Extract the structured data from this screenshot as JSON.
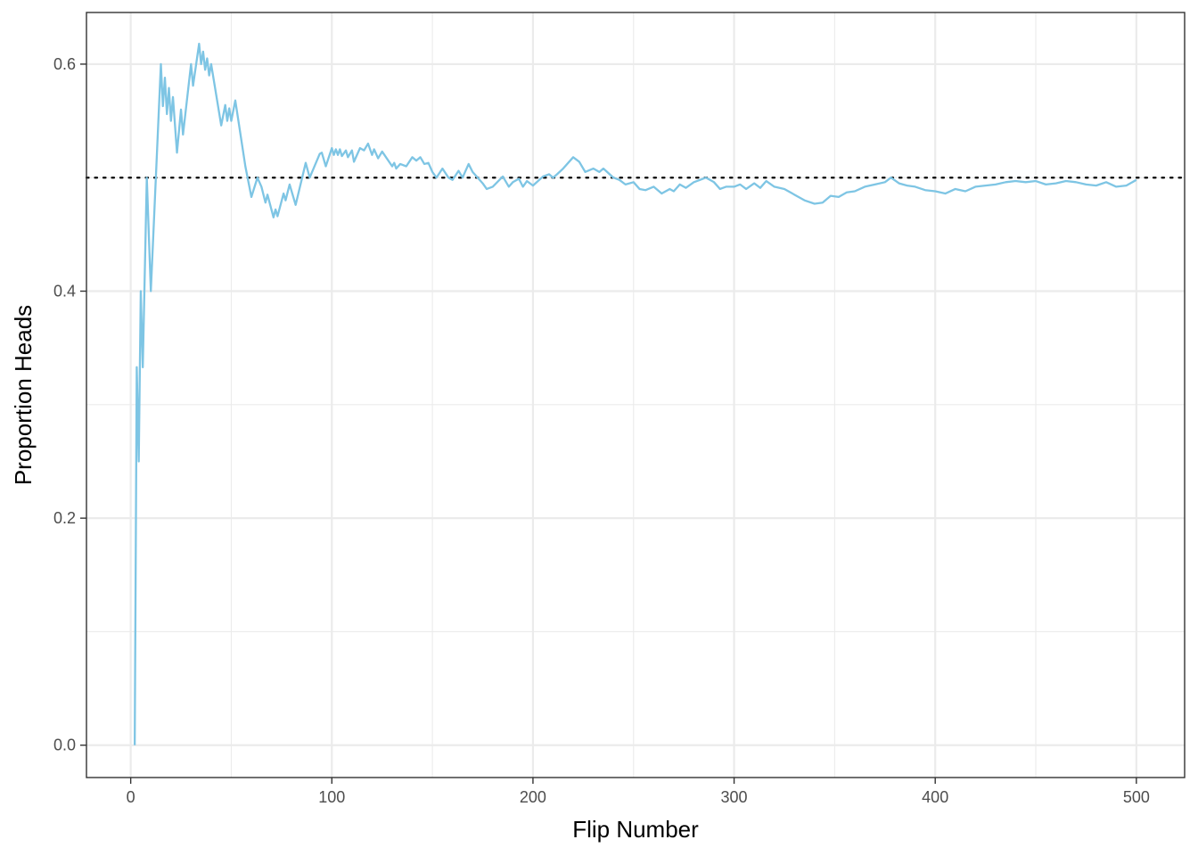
{
  "chart_data": {
    "type": "line",
    "xlabel": "Flip Number",
    "ylabel": "Proportion Heads",
    "xlim": [
      -22,
      524
    ],
    "ylim": [
      -0.0285,
      0.6455
    ],
    "x_ticks": [
      0,
      100,
      200,
      300,
      400,
      500
    ],
    "x_minor_ticks": [
      50,
      150,
      250,
      350,
      450
    ],
    "y_ticks": [
      0.0,
      0.2,
      0.4,
      0.6
    ],
    "y_tick_labels": [
      "0.0",
      "0.2",
      "0.4",
      "0.6"
    ],
    "y_minor_ticks": [
      0.1,
      0.3,
      0.5
    ],
    "grid": true,
    "reference_line": {
      "y": 0.5,
      "style": "dotted",
      "color": "#000000"
    },
    "series": [
      {
        "color": "#7ec5e4",
        "points": [
          [
            2,
            0.0
          ],
          [
            3,
            0.333
          ],
          [
            4,
            0.25
          ],
          [
            5,
            0.4
          ],
          [
            6,
            0.333
          ],
          [
            8,
            0.5
          ],
          [
            10,
            0.4
          ],
          [
            15,
            0.6
          ],
          [
            16,
            0.563
          ],
          [
            17,
            0.588
          ],
          [
            18,
            0.556
          ],
          [
            19,
            0.579
          ],
          [
            20,
            0.55
          ],
          [
            21,
            0.571
          ],
          [
            23,
            0.522
          ],
          [
            25,
            0.56
          ],
          [
            26,
            0.538
          ],
          [
            30,
            0.6
          ],
          [
            31,
            0.581
          ],
          [
            34,
            0.618
          ],
          [
            35,
            0.6
          ],
          [
            36,
            0.611
          ],
          [
            37,
            0.595
          ],
          [
            38,
            0.605
          ],
          [
            39,
            0.59
          ],
          [
            40,
            0.6
          ],
          [
            45,
            0.546
          ],
          [
            47,
            0.564
          ],
          [
            48,
            0.55
          ],
          [
            49,
            0.561
          ],
          [
            50,
            0.55
          ],
          [
            52,
            0.568
          ],
          [
            57,
            0.51
          ],
          [
            60,
            0.483
          ],
          [
            63,
            0.5
          ],
          [
            65,
            0.492
          ],
          [
            67,
            0.478
          ],
          [
            68,
            0.485
          ],
          [
            71,
            0.465
          ],
          [
            72,
            0.472
          ],
          [
            73,
            0.466
          ],
          [
            76,
            0.486
          ],
          [
            77,
            0.48
          ],
          [
            79,
            0.494
          ],
          [
            82,
            0.476
          ],
          [
            87,
            0.513
          ],
          [
            89,
            0.5
          ],
          [
            94,
            0.521
          ],
          [
            95,
            0.522
          ],
          [
            97,
            0.51
          ],
          [
            100,
            0.526
          ],
          [
            101,
            0.52
          ],
          [
            102,
            0.525
          ],
          [
            103,
            0.52
          ],
          [
            104,
            0.525
          ],
          [
            105,
            0.519
          ],
          [
            107,
            0.524
          ],
          [
            108,
            0.518
          ],
          [
            110,
            0.524
          ],
          [
            111,
            0.514
          ],
          [
            114,
            0.526
          ],
          [
            116,
            0.524
          ],
          [
            118,
            0.53
          ],
          [
            120,
            0.52
          ],
          [
            121,
            0.525
          ],
          [
            123,
            0.517
          ],
          [
            125,
            0.523
          ],
          [
            130,
            0.51
          ],
          [
            131,
            0.513
          ],
          [
            132,
            0.508
          ],
          [
            134,
            0.512
          ],
          [
            137,
            0.51
          ],
          [
            140,
            0.518
          ],
          [
            142,
            0.515
          ],
          [
            144,
            0.518
          ],
          [
            146,
            0.512
          ],
          [
            148,
            0.513
          ],
          [
            150,
            0.505
          ],
          [
            152,
            0.5
          ],
          [
            155,
            0.508
          ],
          [
            158,
            0.5
          ],
          [
            160,
            0.498
          ],
          [
            163,
            0.506
          ],
          [
            165,
            0.5
          ],
          [
            168,
            0.512
          ],
          [
            170,
            0.505
          ],
          [
            175,
            0.495
          ],
          [
            177,
            0.49
          ],
          [
            180,
            0.492
          ],
          [
            185,
            0.501
          ],
          [
            188,
            0.492
          ],
          [
            190,
            0.496
          ],
          [
            193,
            0.499
          ],
          [
            195,
            0.492
          ],
          [
            197,
            0.497
          ],
          [
            200,
            0.493
          ],
          [
            205,
            0.501
          ],
          [
            208,
            0.503
          ],
          [
            210,
            0.5
          ],
          [
            212,
            0.503
          ],
          [
            215,
            0.508
          ],
          [
            220,
            0.518
          ],
          [
            223,
            0.514
          ],
          [
            226,
            0.505
          ],
          [
            230,
            0.508
          ],
          [
            233,
            0.505
          ],
          [
            235,
            0.508
          ],
          [
            240,
            0.5
          ],
          [
            243,
            0.498
          ],
          [
            246,
            0.494
          ],
          [
            250,
            0.496
          ],
          [
            253,
            0.49
          ],
          [
            256,
            0.489
          ],
          [
            260,
            0.492
          ],
          [
            264,
            0.486
          ],
          [
            268,
            0.49
          ],
          [
            270,
            0.488
          ],
          [
            273,
            0.494
          ],
          [
            276,
            0.491
          ],
          [
            280,
            0.496
          ],
          [
            283,
            0.498
          ],
          [
            286,
            0.5
          ],
          [
            290,
            0.496
          ],
          [
            293,
            0.49
          ],
          [
            296,
            0.492
          ],
          [
            300,
            0.492
          ],
          [
            303,
            0.494
          ],
          [
            306,
            0.49
          ],
          [
            310,
            0.495
          ],
          [
            313,
            0.491
          ],
          [
            316,
            0.497
          ],
          [
            320,
            0.492
          ],
          [
            325,
            0.49
          ],
          [
            330,
            0.485
          ],
          [
            335,
            0.48
          ],
          [
            340,
            0.477
          ],
          [
            344,
            0.478
          ],
          [
            348,
            0.484
          ],
          [
            352,
            0.483
          ],
          [
            356,
            0.487
          ],
          [
            360,
            0.488
          ],
          [
            365,
            0.492
          ],
          [
            370,
            0.494
          ],
          [
            375,
            0.496
          ],
          [
            378,
            0.5
          ],
          [
            382,
            0.495
          ],
          [
            386,
            0.493
          ],
          [
            390,
            0.492
          ],
          [
            395,
            0.489
          ],
          [
            400,
            0.488
          ],
          [
            405,
            0.486
          ],
          [
            410,
            0.49
          ],
          [
            415,
            0.488
          ],
          [
            420,
            0.492
          ],
          [
            425,
            0.493
          ],
          [
            430,
            0.494
          ],
          [
            435,
            0.496
          ],
          [
            440,
            0.497
          ],
          [
            445,
            0.496
          ],
          [
            450,
            0.497
          ],
          [
            455,
            0.494
          ],
          [
            460,
            0.495
          ],
          [
            465,
            0.497
          ],
          [
            470,
            0.496
          ],
          [
            475,
            0.494
          ],
          [
            480,
            0.493
          ],
          [
            485,
            0.496
          ],
          [
            490,
            0.492
          ],
          [
            495,
            0.493
          ],
          [
            500,
            0.498
          ]
        ]
      }
    ]
  }
}
